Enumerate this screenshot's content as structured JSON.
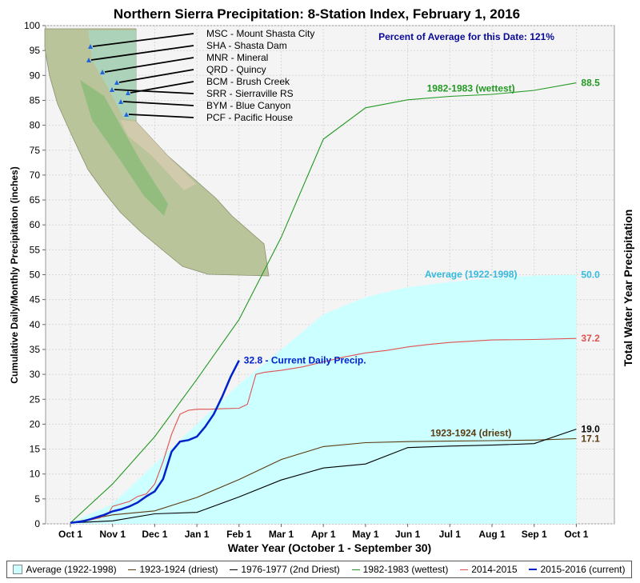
{
  "chart_data": {
    "type": "line",
    "title": "Northern Sierra Precipitation: 8-Station Index, February 1, 2016",
    "xlabel": "Water Year (October 1 - September 30)",
    "ylabel": "Cumulative Daily/Monthly Precipitation (inches)",
    "ylabel_right": "Total Water Year Precipitation",
    "x_ticks": [
      "Oct 1",
      "Nov 1",
      "Dec 1",
      "Jan 1",
      "Feb 1",
      "Mar 1",
      "Apr 1",
      "May 1",
      "Jun 1",
      "Jul 1",
      "Aug 1",
      "Sep 1",
      "Oct 1"
    ],
    "y_ticks": [
      "0",
      "5",
      "10",
      "15",
      "20",
      "25",
      "30",
      "35",
      "40",
      "45",
      "50",
      "55",
      "60",
      "65",
      "70",
      "75",
      "80",
      "85",
      "90",
      "95",
      "100"
    ],
    "ylim": [
      0,
      100
    ],
    "xlim": [
      -0.5,
      12.9
    ],
    "grid": true,
    "percent_note": "Percent of Average for this Date: 121%",
    "series": [
      {
        "name": "Average (1922-1998)",
        "kind": "area",
        "color": "#ccffff",
        "label": "Average (1922-1998)",
        "end_label": "50.0",
        "x": [
          0,
          1,
          2,
          3,
          4,
          5,
          6,
          7,
          8,
          9,
          10,
          11,
          12
        ],
        "y": [
          0.2,
          4,
          12,
          20,
          28,
          35,
          42,
          45.5,
          47.5,
          48.5,
          49.3,
          49.8,
          50.0
        ]
      },
      {
        "name": "1923-1924 (driest)",
        "kind": "line",
        "color": "#5a3a10",
        "label": "1923-1924 (driest)",
        "end_label": "17.1",
        "x": [
          0,
          1,
          2,
          3,
          4,
          5,
          6,
          7,
          8,
          9,
          10,
          11,
          12
        ],
        "y": [
          0.2,
          1.8,
          2.6,
          5.3,
          8.9,
          12.9,
          15.5,
          16.3,
          16.5,
          16.6,
          16.7,
          16.8,
          17.1
        ]
      },
      {
        "name": "1976-1977 (2nd Driest)",
        "kind": "line",
        "color": "#000000",
        "label": "",
        "end_label": "19.0",
        "x": [
          0,
          1,
          2,
          3,
          4,
          5,
          6,
          7,
          8,
          9,
          10,
          11,
          12
        ],
        "y": [
          0.2,
          0.6,
          2.0,
          2.3,
          5.4,
          8.8,
          11.2,
          12.0,
          15.3,
          15.6,
          15.8,
          16.1,
          19.0
        ]
      },
      {
        "name": "1982-1983 (wettest)",
        "kind": "line",
        "color": "#229922",
        "label": "1982-1983 (wettest)",
        "end_label": "88.5",
        "x": [
          0,
          1,
          2,
          3,
          4,
          5,
          6,
          7,
          8,
          9,
          10,
          11,
          12
        ],
        "y": [
          0.2,
          8,
          17.5,
          29,
          41,
          57.5,
          77.2,
          83.5,
          85.1,
          85.8,
          86.2,
          87,
          88.5
        ]
      },
      {
        "name": "2014-2015",
        "kind": "line",
        "color": "#e05050",
        "label": "",
        "end_label": "37.2",
        "x": [
          0,
          0.3,
          0.5,
          0.7,
          0.9,
          1.0,
          1.2,
          1.4,
          1.6,
          1.8,
          2.0,
          2.2,
          2.4,
          2.6,
          2.8,
          3.0,
          3.3,
          3.6,
          4.0,
          4.2,
          4.4,
          4.6,
          5.0,
          5.5,
          6.0,
          6.5,
          7.0,
          7.5,
          8.0,
          8.5,
          9.0,
          10.0,
          11.0,
          12.0
        ],
        "y": [
          0.2,
          0.5,
          0.8,
          1.2,
          2.0,
          3.5,
          4.0,
          4.5,
          5.5,
          6.0,
          8.0,
          12.5,
          18.0,
          22.0,
          22.8,
          23.0,
          23.0,
          23.1,
          23.2,
          24.0,
          30.0,
          30.4,
          30.8,
          31.5,
          32.5,
          33.5,
          34.3,
          34.8,
          35.5,
          36.0,
          36.4,
          36.9,
          37.0,
          37.2
        ]
      },
      {
        "name": "2015-2016 (current)",
        "kind": "line",
        "color": "#0022cc",
        "label": "",
        "end_label": "32.8 -  Current Daily Precip.",
        "x": [
          0,
          0.3,
          0.5,
          0.8,
          1.0,
          1.2,
          1.4,
          1.6,
          1.8,
          2.0,
          2.2,
          2.4,
          2.6,
          2.8,
          3.0,
          3.2,
          3.4,
          3.6,
          3.8,
          4.0
        ],
        "y": [
          0.2,
          0.5,
          1.0,
          1.8,
          2.5,
          2.9,
          3.5,
          4.3,
          5.5,
          6.5,
          9.0,
          14.5,
          16.5,
          16.8,
          17.5,
          19.5,
          22.0,
          25.5,
          29.5,
          32.8
        ]
      }
    ],
    "map_labels": [
      "MSC - Mount Shasta City",
      "SHA - Shasta Dam",
      "MNR - Mineral",
      "QRD - Quincy",
      "BCM - Brush Creek",
      "SRR - Sierraville RS",
      "BYM - Blue Canyon",
      "PCF - Pacific House"
    ]
  },
  "legend": [
    {
      "label": "Average (1922-1998)",
      "color": "#ccffff",
      "kind": "swatch"
    },
    {
      "label": "1923-1924 (driest)",
      "color": "#5a3a10",
      "kind": "line"
    },
    {
      "label": "1976-1977 (2nd Driest)",
      "color": "#000000",
      "kind": "line"
    },
    {
      "label": "1982-1983 (wettest)",
      "color": "#229922",
      "kind": "line"
    },
    {
      "label": "2014-2015",
      "color": "#e05050",
      "kind": "line"
    },
    {
      "label": "2015-2016 (current)",
      "color": "#0022cc",
      "kind": "line"
    }
  ]
}
